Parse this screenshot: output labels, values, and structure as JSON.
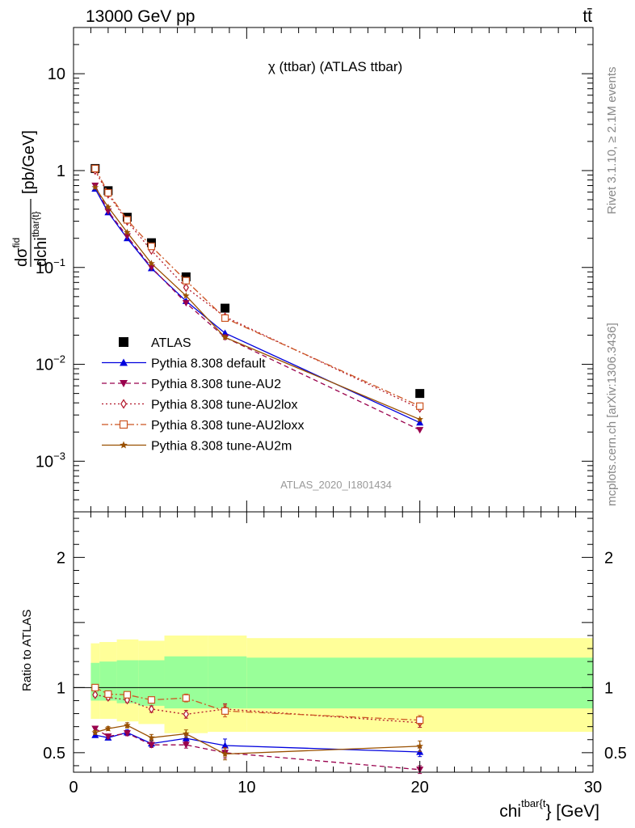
{
  "header": {
    "energy_label": "13000 GeV pp",
    "process_label": "tt̄"
  },
  "side_labels": {
    "rivet": "Rivet 3.1.10, ≥ 2.1M events",
    "mcplots": "mcplots.cern.ch [arXiv:1306.3436]"
  },
  "top_panel": {
    "title": "χ (ttbar) (ATLAS ttbar)",
    "watermark": "ATLAS_2020_I1801434",
    "ylabel": "dσ^fid / dchi^tbar{t} [pb/GeV]",
    "yticks": [
      {
        "base": "10",
        "exp": "−3",
        "value": 0.001
      },
      {
        "base": "10",
        "exp": "−2",
        "value": 0.01
      },
      {
        "base": "10",
        "exp": "−1",
        "value": 0.1
      },
      {
        "base": "1",
        "exp": "",
        "value": 1
      },
      {
        "base": "10",
        "exp": "",
        "value": 10
      }
    ]
  },
  "bottom_panel": {
    "ylabel": "Ratio to ATLAS",
    "yticks": [
      {
        "label": "0.5",
        "value": 0.5
      },
      {
        "label": "1",
        "value": 1
      },
      {
        "label": "2",
        "value": 2
      }
    ]
  },
  "x_axis": {
    "label_main": "chi",
    "label_sup": "tbar{t",
    "label_tail": "} [GeV]",
    "ticks": [
      {
        "label": "0",
        "value": 0
      },
      {
        "label": "10",
        "value": 10
      },
      {
        "label": "20",
        "value": 20
      },
      {
        "label": "30",
        "value": 30
      }
    ]
  },
  "chart_data": [
    {
      "type": "line",
      "panel": "main",
      "yscale": "log",
      "xlim": [
        0,
        30
      ],
      "ylim": [
        0.0003,
        30
      ],
      "x": [
        1.25,
        2,
        3.1,
        4.5,
        6.5,
        8.75,
        20
      ],
      "series": [
        {
          "name": "ATLAS",
          "marker": "filled-square",
          "color": "#000000",
          "values": [
            1.05,
            0.62,
            0.33,
            0.18,
            0.08,
            0.038,
            0.005
          ]
        },
        {
          "name": "Pythia 8.308 default",
          "marker": "filled-triangle-up",
          "style": "solid",
          "color": "#0000dd",
          "values": [
            0.65,
            0.37,
            0.2,
            0.098,
            0.045,
            0.021,
            0.0025
          ]
        },
        {
          "name": "Pythia 8.308 tune-AU2",
          "marker": "filled-triangle-down",
          "style": "dashed",
          "color": "#99004d",
          "values": [
            0.7,
            0.38,
            0.21,
            0.1,
            0.043,
            0.019,
            0.0021
          ]
        },
        {
          "name": "Pythia 8.308 tune-AU2lox",
          "marker": "open-diamond",
          "style": "dotted",
          "color": "#b2182b",
          "values": [
            1.0,
            0.57,
            0.3,
            0.15,
            0.062,
            0.031,
            0.0035
          ]
        },
        {
          "name": "Pythia 8.308 tune-AU2loxx",
          "marker": "open-square",
          "style": "dashdot",
          "color": "#cc5522",
          "values": [
            1.05,
            0.59,
            0.31,
            0.165,
            0.073,
            0.03,
            0.0037
          ]
        },
        {
          "name": "Pythia 8.308 tune-AU2m",
          "marker": "star",
          "style": "solid",
          "color": "#995000",
          "values": [
            0.67,
            0.42,
            0.23,
            0.11,
            0.051,
            0.019,
            0.0027
          ]
        }
      ],
      "legend_position": "bottom-left"
    },
    {
      "type": "line",
      "panel": "ratio",
      "ylabel": "Ratio to ATLAS",
      "xlim": [
        0,
        30
      ],
      "ylim": [
        0.35,
        2.35
      ],
      "x": [
        1.25,
        2,
        3.1,
        4.5,
        6.5,
        8.75,
        20
      ],
      "uncertainty_bands": {
        "edges": [
          1,
          1.5,
          2.5,
          3.75,
          5.25,
          7.75,
          10,
          30
        ],
        "yellow_low": [
          0.76,
          0.76,
          0.74,
          0.72,
          0.65,
          0.66,
          0.66
        ],
        "yellow_high": [
          1.34,
          1.35,
          1.37,
          1.36,
          1.4,
          1.4,
          1.38
        ],
        "green_low": [
          0.9,
          0.9,
          0.88,
          0.86,
          0.84,
          0.84,
          0.84
        ],
        "green_high": [
          1.19,
          1.2,
          1.21,
          1.21,
          1.24,
          1.24,
          1.23
        ]
      },
      "series": [
        {
          "name": "Pythia 8.308 default",
          "values": [
            0.635,
            0.615,
            0.655,
            0.57,
            0.61,
            0.555,
            0.505
          ],
          "errors": [
            0.015,
            0.015,
            0.02,
            0.025,
            0.03,
            0.05,
            0.035
          ]
        },
        {
          "name": "Pythia 8.308 tune-AU2",
          "values": [
            0.685,
            0.625,
            0.65,
            0.56,
            0.56,
            0.5,
            0.37
          ],
          "errors": [
            0.015,
            0.015,
            0.02,
            0.02,
            0.025,
            0.04,
            0.03
          ]
        },
        {
          "name": "Pythia 8.308 tune-AU2lox",
          "values": [
            0.945,
            0.925,
            0.905,
            0.835,
            0.795,
            0.835,
            0.73
          ],
          "errors": [
            0.015,
            0.02,
            0.02,
            0.025,
            0.03,
            0.04,
            0.035
          ]
        },
        {
          "name": "Pythia 8.308 tune-AU2loxx",
          "values": [
            1.0,
            0.95,
            0.945,
            0.905,
            0.92,
            0.82,
            0.75
          ],
          "errors": [
            0.015,
            0.02,
            0.02,
            0.025,
            0.03,
            0.045,
            0.035
          ]
        },
        {
          "name": "Pythia 8.308 tune-AU2m",
          "values": [
            0.655,
            0.685,
            0.71,
            0.615,
            0.645,
            0.49,
            0.55
          ],
          "errors": [
            0.015,
            0.015,
            0.02,
            0.025,
            0.03,
            0.045,
            0.04
          ]
        }
      ]
    }
  ]
}
